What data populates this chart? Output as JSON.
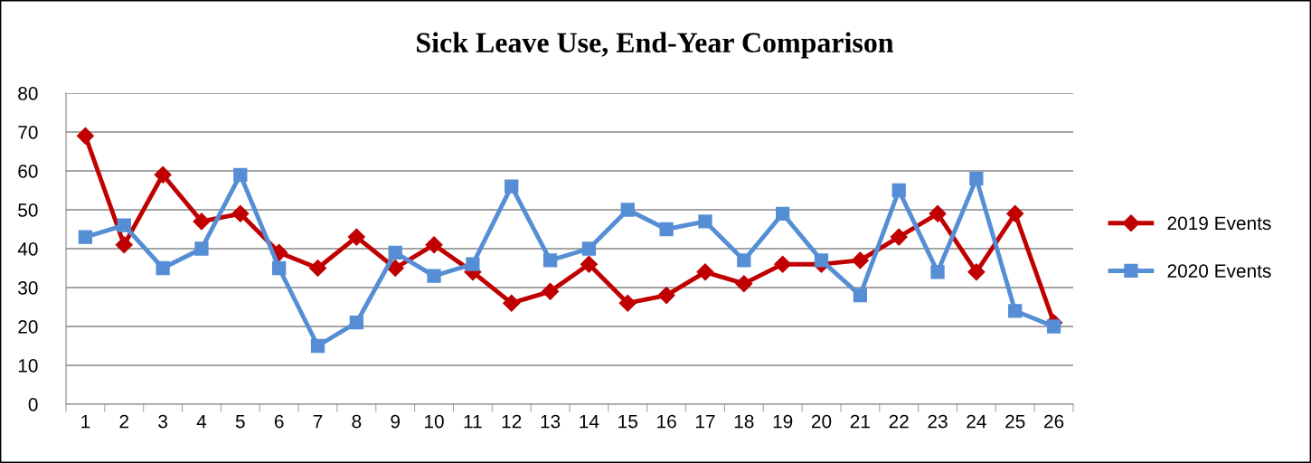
{
  "chart_data": {
    "type": "line",
    "title": "Sick Leave Use, End-Year Comparison",
    "categories": [
      "1",
      "2",
      "3",
      "4",
      "5",
      "6",
      "7",
      "8",
      "9",
      "10",
      "11",
      "12",
      "13",
      "14",
      "15",
      "16",
      "17",
      "18",
      "19",
      "20",
      "21",
      "22",
      "23",
      "24",
      "25",
      "26"
    ],
    "series": [
      {
        "name": "2019 Events",
        "color": "#c00000",
        "marker": "diamond",
        "values": [
          69,
          41,
          59,
          47,
          49,
          39,
          35,
          43,
          35,
          41,
          34,
          26,
          29,
          36,
          26,
          28,
          34,
          31,
          36,
          36,
          37,
          43,
          49,
          34,
          49,
          21
        ]
      },
      {
        "name": "2020 Events",
        "color": "#558ed5",
        "marker": "square",
        "values": [
          43,
          46,
          35,
          40,
          59,
          35,
          15,
          21,
          39,
          33,
          36,
          56,
          37,
          40,
          50,
          45,
          47,
          37,
          49,
          37,
          28,
          55,
          34,
          58,
          24,
          20
        ]
      }
    ],
    "ylim": [
      0,
      80
    ],
    "yticks": [
      0,
      10,
      20,
      30,
      40,
      50,
      60,
      70,
      80
    ],
    "grid": "y",
    "legend": "right",
    "line_style": "solid"
  }
}
